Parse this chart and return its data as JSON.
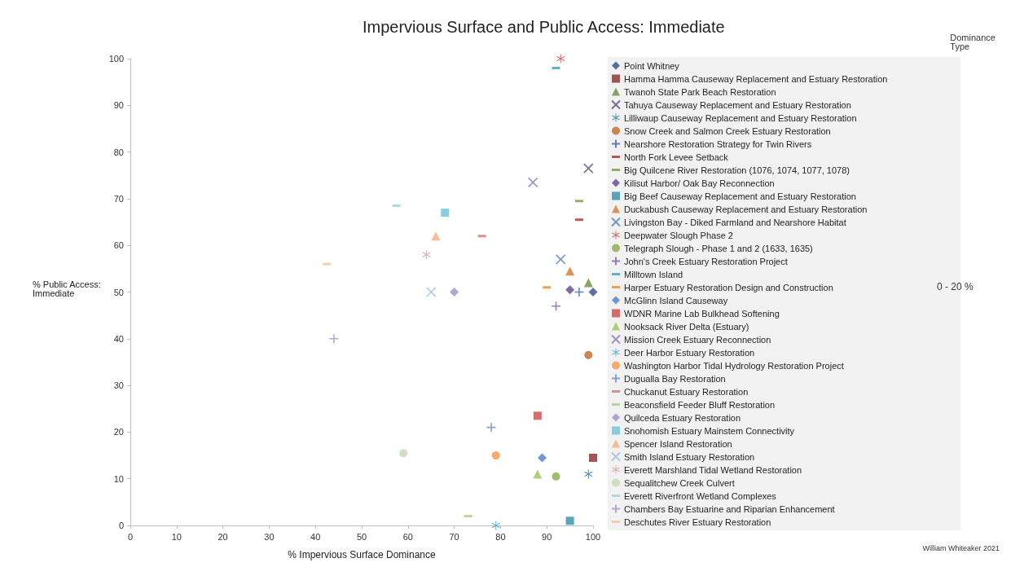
{
  "chart_data": {
    "type": "scatter",
    "title": "Impervious Surface and Public Access: Immediate",
    "xlabel": "% Impervious Surface Dominance",
    "ylabel": "% Public Access: Immediate",
    "legend_title": "Dominance Type",
    "legend": "right",
    "grid": false,
    "xlim": [
      0,
      100
    ],
    "xticks": [
      0,
      10,
      20,
      30,
      40,
      50,
      60,
      70,
      80,
      90,
      100
    ],
    "ylim": [
      0,
      100
    ],
    "yticks": [
      0,
      10,
      20,
      30,
      40,
      50,
      60,
      70,
      80,
      90,
      100
    ],
    "annotations": [
      "0 - 20 %",
      "William Whiteaker 2021"
    ],
    "series": [
      {
        "name": "Point Whitney",
        "color": "#2e4f8a",
        "marker": "diamond",
        "x": [
          100
        ],
        "values": [
          50
        ]
      },
      {
        "name": "Hamma Hamma Causeway Replacement and Estuary Restoration",
        "color": "#8b2a2a",
        "marker": "square",
        "x": [
          100
        ],
        "values": [
          14.5
        ]
      },
      {
        "name": "Twanoh State Park Beach Restoration",
        "color": "#6b8e3a",
        "marker": "triangle",
        "x": [
          99
        ],
        "values": [
          52
        ]
      },
      {
        "name": "Tahuya Causeway Replacement and Estuary Restoration",
        "color": "#5a4a80",
        "marker": "cross",
        "x": [
          99
        ],
        "values": [
          76.5
        ]
      },
      {
        "name": "Lilliwaup Causeway Replacement and Estuary Restoration",
        "color": "#2b7a95",
        "marker": "star",
        "x": [
          99
        ],
        "values": [
          11
        ]
      },
      {
        "name": "Snow Creek and Salmon Creek Estuary Restoration",
        "color": "#c06a25",
        "marker": "circle",
        "x": [
          99
        ],
        "values": [
          36.5
        ]
      },
      {
        "name": "Nearshore Restoration Strategy for Twin Rivers",
        "color": "#3a64a8",
        "marker": "plus",
        "x": [
          97
        ],
        "values": [
          50
        ]
      },
      {
        "name": "North Fork Levee Setback",
        "color": "#a83232",
        "x": [
          97
        ],
        "values": [
          65.5
        ]
      },
      {
        "name": "Big Quilcene River Restoration (1076, 1074, 1077, 1078)",
        "color": "#7a9a40",
        "x": [
          97
        ],
        "values": [
          69.5
        ]
      },
      {
        "name": "Kilisut Harbor/ Oak Bay Reconnection",
        "color": "#5e4590",
        "marker": "diamond",
        "x": [
          95
        ],
        "values": [
          50.5
        ]
      },
      {
        "name": "Big Beef Causeway Replacement and Estuary Restoration",
        "color": "#2d8fae",
        "marker": "square",
        "x": [
          95
        ],
        "values": [
          1
        ]
      },
      {
        "name": "Duckabush Causeway Replacement and Estuary Restoration",
        "color": "#d9782a",
        "marker": "triangle",
        "x": [
          95
        ],
        "values": [
          54.5
        ]
      },
      {
        "name": "Livingston Bay - Diked Farmland and Nearshore Habitat",
        "color": "#5a80b8",
        "marker": "cross",
        "x": [
          93
        ],
        "values": [
          57
        ]
      },
      {
        "name": "Deepwater Slough Phase 2",
        "color": "#c0504d",
        "marker": "star",
        "x": [
          93
        ],
        "values": [
          100
        ]
      },
      {
        "name": "Telegraph Slough - Phase 1 and 2 (1633, 1635)",
        "color": "#8aad45",
        "marker": "circle",
        "x": [
          92
        ],
        "values": [
          10.5
        ]
      },
      {
        "name": "John's Creek Estuary Restoration Project",
        "color": "#7a60a8",
        "marker": "plus",
        "x": [
          92
        ],
        "values": [
          47
        ]
      },
      {
        "name": "Milltown Island",
        "color": "#3a9cc0",
        "x": [
          92
        ],
        "values": [
          98
        ]
      },
      {
        "name": "Harper Estuary Restoration Design and Construction",
        "color": "#ec8a2e",
        "x": [
          90
        ],
        "values": [
          51
        ]
      },
      {
        "name": "McGlinn Island Causeway",
        "color": "#4a7ec4",
        "marker": "diamond",
        "x": [
          89
        ],
        "values": [
          14.5
        ]
      },
      {
        "name": "WDNR Marine Lab Bulkhead Softening",
        "color": "#cc4a48",
        "marker": "square",
        "x": [
          88
        ],
        "values": [
          23.5
        ]
      },
      {
        "name": "Nooksack River Delta (Estuary)",
        "color": "#9bc450",
        "marker": "triangle",
        "x": [
          88
        ],
        "values": [
          11
        ]
      },
      {
        "name": "Mission Creek Estuary Reconnection",
        "color": "#8a78b8",
        "marker": "cross",
        "x": [
          87
        ],
        "values": [
          73.5
        ]
      },
      {
        "name": "Deer Harbor Estuary Restoration",
        "color": "#45a8d0",
        "marker": "star",
        "x": [
          79
        ],
        "values": [
          0
        ]
      },
      {
        "name": "Washington Harbor Tidal Hydrology Restoration Project",
        "color": "#f79646",
        "marker": "circle",
        "x": [
          79
        ],
        "values": [
          15
        ]
      },
      {
        "name": "Dugualla Bay Restoration",
        "color": "#6a88c0",
        "marker": "plus",
        "x": [
          78
        ],
        "values": [
          21
        ]
      },
      {
        "name": "Chuckanut Estuary Restoration",
        "color": "#d07474",
        "x": [
          76
        ],
        "values": [
          62
        ]
      },
      {
        "name": "Beaconsfield Feeder Bluff Restoration",
        "color": "#afc985",
        "x": [
          73
        ],
        "values": [
          2
        ]
      },
      {
        "name": "Quilceda Estuary Restoration",
        "color": "#9f8fc4",
        "marker": "diamond",
        "x": [
          70
        ],
        "values": [
          50
        ]
      },
      {
        "name": "Snohomish Estuary Mainstem Connectivity",
        "color": "#6ec0da",
        "marker": "square",
        "x": [
          68
        ],
        "values": [
          67
        ]
      },
      {
        "name": "Spencer Island Restoration",
        "color": "#f9ab75",
        "marker": "triangle",
        "x": [
          66
        ],
        "values": [
          62
        ]
      },
      {
        "name": "Smith Island Estuary Restoration",
        "color": "#a0b8da",
        "marker": "cross",
        "x": [
          65
        ],
        "values": [
          50
        ]
      },
      {
        "name": "Everett Marshland Tidal Wetland Restoration",
        "color": "#dc9a9a",
        "marker": "star",
        "x": [
          64
        ],
        "values": [
          58
        ]
      },
      {
        "name": "Sequalitchew Creek Culvert",
        "color": "#c5d8ae",
        "marker": "circle",
        "x": [
          59
        ],
        "values": [
          15.5
        ]
      },
      {
        "name": "Everett Riverfront Wetland Complexes",
        "color": "#9dcfdf",
        "x": [
          57.5
        ],
        "values": [
          68.5
        ]
      },
      {
        "name": "Chambers Bay Estuarine and Riparian Enhancement",
        "color": "#a294c8",
        "marker": "plus",
        "x": [
          44
        ],
        "values": [
          40
        ]
      },
      {
        "name": "Deschutes River Estuary Restoration",
        "color": "#fbbf98",
        "x": [
          42.5
        ],
        "values": [
          56
        ]
      }
    ]
  }
}
